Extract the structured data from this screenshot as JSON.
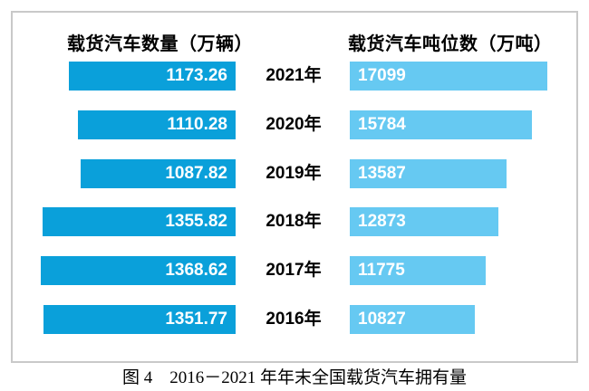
{
  "chart_data": {
    "type": "bar",
    "layout": "horizontal-back-to-back",
    "categories": [
      "2021年",
      "2020年",
      "2019年",
      "2018年",
      "2017年",
      "2016年"
    ],
    "series": [
      {
        "name": "载货汽车数量（万辆）",
        "values": [
          1173.26,
          1110.28,
          1087.82,
          1355.82,
          1368.62,
          1351.77
        ],
        "color": "#0aa0da",
        "align": "right",
        "decimals": 2
      },
      {
        "name": "载货汽车吨位数（万吨）",
        "values": [
          17099,
          15784,
          13587,
          12873,
          11775,
          10827
        ],
        "color": "#66c9f2",
        "align": "left",
        "decimals": 0
      }
    ],
    "value_labels": "inside-bar, white bold",
    "axis": "none (zero baseline, bars proportional to value)",
    "title": "图 4　2016－2021 年年末全国载货汽车拥有量"
  },
  "panel": {
    "left_title": "载货汽车数量（万辆）",
    "right_title": "载货汽车吨位数（万吨）",
    "border_color": "#c9c9c9",
    "background": "#ffffff"
  },
  "caption": "图 4　2016－2021 年年末全国载货汽车拥有量"
}
